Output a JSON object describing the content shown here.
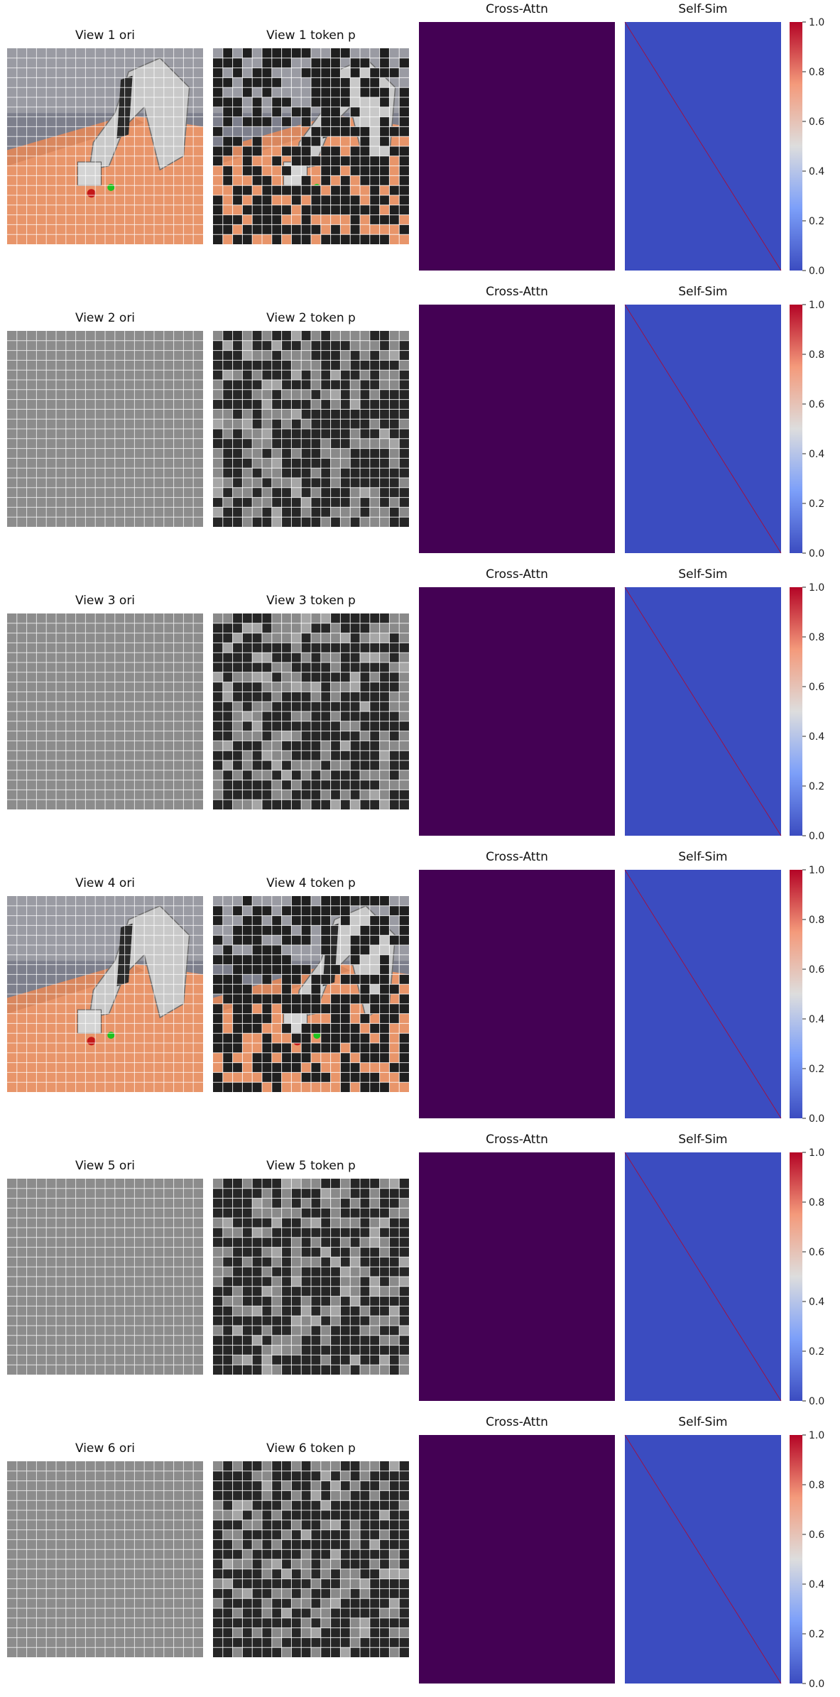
{
  "chart_data": [
    {
      "view": 1,
      "panels": [
        {
          "title": "View 1 ori",
          "type": "image",
          "content": "robot-arm-scene",
          "grid": [
            20,
            20
          ]
        },
        {
          "title": "View 1 token p",
          "type": "image",
          "content": "masked-robot-arm-scene",
          "grid": [
            20,
            20
          ]
        },
        {
          "title": "Cross-Attn",
          "type": "heatmap",
          "value": "uniform",
          "color": "#440154"
        },
        {
          "title": "Self-Sim",
          "type": "heatmap",
          "colormap": "coolwarm",
          "diagonal": 1.0,
          "off_diagonal": 0.0
        }
      ],
      "colorbar": {
        "ticks": [
          "0.0",
          "0.2",
          "0.4",
          "0.6",
          "0.8",
          "1.0"
        ],
        "range": [
          0,
          1
        ]
      }
    },
    {
      "view": 2,
      "panels": [
        {
          "title": "View 2 ori",
          "type": "image",
          "content": "gray-blank",
          "grid": [
            20,
            20
          ]
        },
        {
          "title": "View 2 token p",
          "type": "image",
          "content": "masked-gray",
          "grid": [
            20,
            20
          ]
        },
        {
          "title": "Cross-Attn",
          "type": "heatmap",
          "value": "uniform",
          "color": "#440154"
        },
        {
          "title": "Self-Sim",
          "type": "heatmap",
          "colormap": "coolwarm",
          "diagonal": 1.0,
          "off_diagonal": 0.0
        }
      ],
      "colorbar": {
        "ticks": [
          "0.0",
          "0.2",
          "0.4",
          "0.6",
          "0.8",
          "1.0"
        ],
        "range": [
          0,
          1
        ]
      }
    },
    {
      "view": 3,
      "panels": [
        {
          "title": "View 3 ori",
          "type": "image",
          "content": "gray-blank",
          "grid": [
            20,
            20
          ]
        },
        {
          "title": "View 3 token p",
          "type": "image",
          "content": "masked-gray",
          "grid": [
            20,
            20
          ]
        },
        {
          "title": "Cross-Attn",
          "type": "heatmap",
          "value": "uniform",
          "color": "#440154"
        },
        {
          "title": "Self-Sim",
          "type": "heatmap",
          "colormap": "coolwarm",
          "diagonal": 1.0,
          "off_diagonal": 0.0
        }
      ],
      "colorbar": {
        "ticks": [
          "0.0",
          "0.2",
          "0.4",
          "0.6",
          "0.8",
          "1.0"
        ],
        "range": [
          0,
          1
        ]
      }
    },
    {
      "view": 4,
      "panels": [
        {
          "title": "View 4 ori",
          "type": "image",
          "content": "robot-arm-scene",
          "grid": [
            20,
            20
          ]
        },
        {
          "title": "View 4 token p",
          "type": "image",
          "content": "masked-robot-arm-scene",
          "grid": [
            20,
            20
          ]
        },
        {
          "title": "Cross-Attn",
          "type": "heatmap",
          "value": "uniform",
          "color": "#440154"
        },
        {
          "title": "Self-Sim",
          "type": "heatmap",
          "colormap": "coolwarm",
          "diagonal": 1.0,
          "off_diagonal": 0.0
        }
      ],
      "colorbar": {
        "ticks": [
          "0.0",
          "0.2",
          "0.4",
          "0.6",
          "0.8",
          "1.0"
        ],
        "range": [
          0,
          1
        ]
      }
    },
    {
      "view": 5,
      "panels": [
        {
          "title": "View 5 ori",
          "type": "image",
          "content": "gray-blank",
          "grid": [
            20,
            20
          ]
        },
        {
          "title": "View 5 token p",
          "type": "image",
          "content": "masked-gray",
          "grid": [
            20,
            20
          ]
        },
        {
          "title": "Cross-Attn",
          "type": "heatmap",
          "value": "uniform",
          "color": "#440154"
        },
        {
          "title": "Self-Sim",
          "type": "heatmap",
          "colormap": "coolwarm",
          "diagonal": 1.0,
          "off_diagonal": 0.0
        }
      ],
      "colorbar": {
        "ticks": [
          "0.0",
          "0.2",
          "0.4",
          "0.6",
          "0.8",
          "1.0"
        ],
        "range": [
          0,
          1
        ]
      }
    },
    {
      "view": 6,
      "panels": [
        {
          "title": "View 6 ori",
          "type": "image",
          "content": "gray-blank",
          "grid": [
            20,
            20
          ]
        },
        {
          "title": "View 6 token p",
          "type": "image",
          "content": "masked-gray",
          "grid": [
            20,
            20
          ]
        },
        {
          "title": "Cross-Attn",
          "type": "heatmap",
          "value": "uniform",
          "color": "#440154"
        },
        {
          "title": "Self-Sim",
          "type": "heatmap",
          "colormap": "coolwarm",
          "diagonal": 1.0,
          "off_diagonal": 0.0
        }
      ],
      "colorbar": {
        "ticks": [
          "0.0",
          "0.2",
          "0.4",
          "0.6",
          "0.8",
          "1.0"
        ],
        "range": [
          0,
          1
        ]
      }
    }
  ],
  "colors": {
    "cross_attn": "#440154",
    "self_sim_low": "#3b4cc0",
    "self_sim_diag": "#b40426",
    "grid_line": "#ffffff",
    "masked_dark": "#262626",
    "masked_light": "#8a8a8a",
    "gray_bg": "#8c8c8c",
    "floor": "#e8956a",
    "wall": "#7d7f8c"
  }
}
